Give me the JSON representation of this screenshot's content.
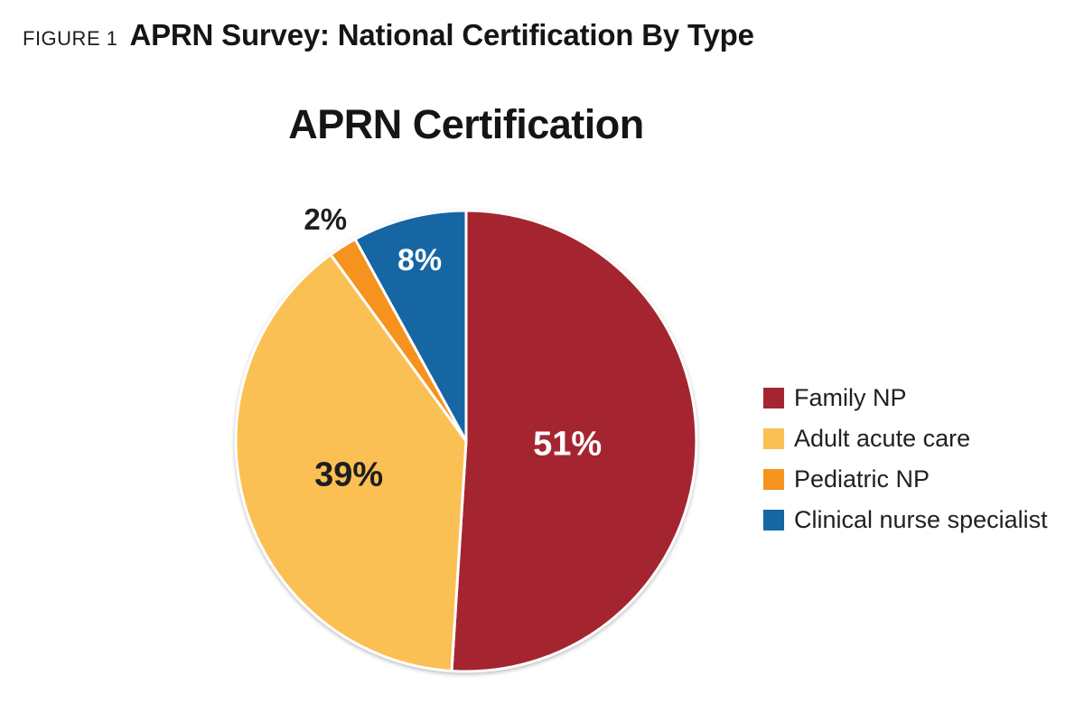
{
  "header": {
    "figure_label": "FIGURE 1",
    "title": "APRN Survey: National Certification By Type"
  },
  "chart_data": {
    "type": "pie",
    "title": "APRN Certification",
    "legend_position": "right",
    "start_angle_deg": -90,
    "direction": "clockwise",
    "slices": [
      {
        "label": "Family NP",
        "value": 51,
        "percent_label": "51%",
        "color": "#A42530",
        "label_color": "#FFFFFF",
        "label_inside": true
      },
      {
        "label": "Adult acute care",
        "value": 39,
        "percent_label": "39%",
        "color": "#FBC054",
        "label_color": "#1E1E1E",
        "label_inside": true
      },
      {
        "label": "Pediatric NP",
        "value": 2,
        "percent_label": "2%",
        "color": "#F6921E",
        "label_color": "#1E1E1E",
        "label_inside": false
      },
      {
        "label": "Clinical nurse specialist",
        "value": 8,
        "percent_label": "8%",
        "color": "#1566A3",
        "label_color": "#FFFFFF",
        "label_inside": true
      }
    ]
  }
}
